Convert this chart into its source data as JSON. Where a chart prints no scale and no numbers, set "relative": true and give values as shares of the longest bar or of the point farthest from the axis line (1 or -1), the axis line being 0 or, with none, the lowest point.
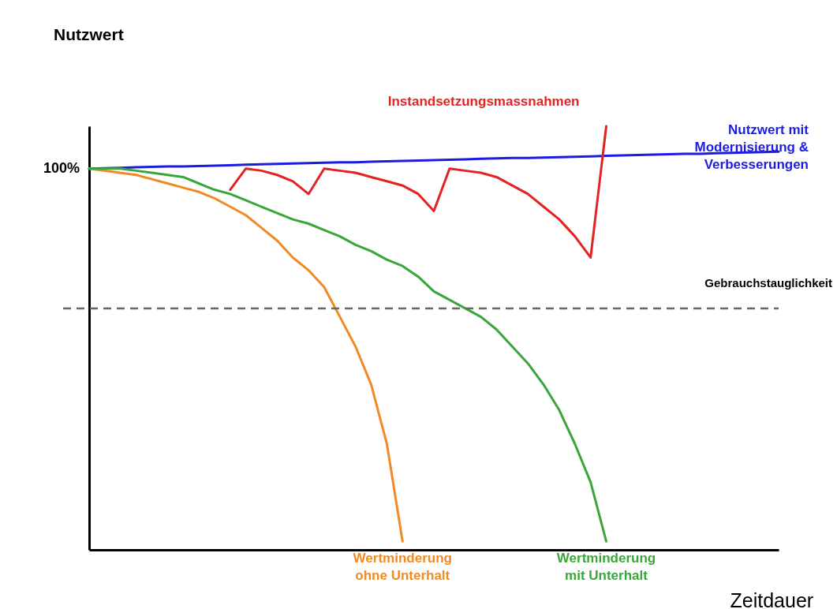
{
  "chart_data": {
    "type": "line",
    "relative": true,
    "xlabel": "Zeitdauer",
    "marker": "none",
    "categories": [
      null,
      null,
      null,
      null,
      null,
      null,
      null,
      null,
      null,
      null,
      null,
      null,
      null,
      null,
      null,
      null,
      null,
      null,
      null,
      null,
      null,
      null,
      null,
      null,
      null,
      null,
      null,
      null,
      null,
      null,
      null,
      null,
      null,
      null,
      null,
      null,
      null,
      null,
      null,
      null,
      null,
      null,
      null,
      null,
      null
    ],
    "series": [
      {
        "name": "Nutzwert mit\nModernisierung &\nVerbesserungen",
        "color": "#1c1ce0",
        "values": [
          0.9,
          0.901,
          0.902,
          0.903,
          0.904,
          0.905,
          0.905,
          0.906,
          0.907,
          0.908,
          0.909,
          0.91,
          0.911,
          0.912,
          0.913,
          0.914,
          0.915,
          0.915,
          0.916,
          0.917,
          0.918,
          0.919,
          0.92,
          0.921,
          0.922,
          0.923,
          0.924,
          0.925,
          0.925,
          0.926,
          0.927,
          0.928,
          0.929,
          0.93,
          0.931,
          0.932,
          0.933,
          0.934,
          0.935,
          0.935,
          0.936,
          0.937,
          0.938,
          0.939,
          0.94
        ]
      },
      {
        "name": "Wertminderung\nohne Unterhalt",
        "color": "#f08a24",
        "values": [
          0.9,
          null,
          null,
          0.885,
          0.875,
          0.865,
          0.855,
          0.845,
          0.83,
          0.81,
          0.79,
          0.76,
          0.73,
          0.69,
          0.66,
          0.62,
          0.55,
          0.48,
          0.39,
          0.25,
          0.02,
          null,
          null,
          null,
          null,
          null,
          null,
          null,
          null,
          null,
          null,
          null,
          null,
          null,
          null,
          null,
          null,
          null,
          null,
          null,
          null,
          null,
          null,
          null,
          null
        ]
      },
      {
        "name": "Wertminderung\nmit Unterhalt",
        "color": "#3aa63a",
        "values": [
          0.9,
          0.9,
          0.9,
          0.895,
          0.89,
          0.885,
          0.88,
          0.865,
          0.85,
          0.84,
          0.825,
          0.81,
          0.795,
          0.78,
          0.77,
          0.755,
          0.74,
          0.72,
          0.705,
          0.685,
          0.67,
          0.645,
          0.61,
          0.59,
          0.57,
          0.55,
          0.52,
          0.48,
          0.44,
          0.39,
          0.33,
          0.25,
          0.16,
          0.02,
          null,
          null,
          null,
          null,
          null,
          null,
          null,
          null,
          null,
          null,
          null
        ]
      },
      {
        "name": "Instandsetzungsmassnahmen",
        "color": "#e52222",
        "values": [
          null,
          null,
          null,
          null,
          null,
          null,
          null,
          null,
          null,
          0.85,
          0.9,
          0.895,
          0.885,
          0.87,
          0.84,
          0.9,
          0.895,
          0.89,
          0.88,
          0.87,
          0.86,
          0.84,
          0.8,
          0.9,
          0.895,
          0.89,
          0.88,
          0.86,
          0.84,
          0.81,
          0.78,
          0.74,
          0.69,
          1,
          null,
          null,
          null,
          null,
          null,
          null,
          null,
          null,
          null,
          null,
          null
        ]
      }
    ],
    "ref_lines": [
      {
        "axis": "y",
        "value": 0.57,
        "label": "Gebrauchstauglichkeit",
        "color": "#666666",
        "line_style": "dashed"
      }
    ],
    "annotations": [
      "Nutzwert",
      "100%"
    ]
  }
}
